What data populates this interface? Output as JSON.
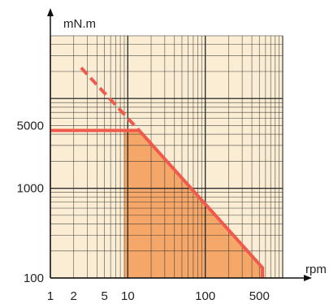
{
  "chart_data": {
    "type": "line",
    "xlabel": "rpm",
    "ylabel": "mN.m",
    "x_scale": "log",
    "y_scale": "log",
    "xlim": [
      1,
      1000
    ],
    "ylim": [
      100,
      50000
    ],
    "x_ticks": [
      {
        "value": 1,
        "label": "1"
      },
      {
        "value": 2,
        "label": "2"
      },
      {
        "value": 5,
        "label": "5"
      },
      {
        "value": 10,
        "label": "10"
      },
      {
        "value": 100,
        "label": "100"
      },
      {
        "value": 500,
        "label": "500"
      }
    ],
    "y_ticks": [
      {
        "value": 100,
        "label": "100"
      },
      {
        "value": 1000,
        "label": "1000"
      },
      {
        "value": 5000,
        "label": "5000"
      }
    ],
    "grid": true,
    "series": [
      {
        "style": "solid",
        "color": "#ef5a4c",
        "points": [
          [
            1,
            4400
          ],
          [
            14,
            4400
          ],
          [
            550,
            130
          ],
          [
            550,
            100
          ]
        ]
      },
      {
        "style": "dashed",
        "color": "#ef5a4c",
        "points": [
          [
            2.5,
            22000
          ],
          [
            14,
            4400
          ]
        ]
      }
    ],
    "shaded_region": {
      "color": "#f3a15f",
      "points": [
        [
          9,
          100
        ],
        [
          9,
          4400
        ],
        [
          14,
          4400
        ],
        [
          550,
          130
        ],
        [
          550,
          100
        ]
      ]
    },
    "colors": {
      "background": "#fbedd4",
      "grid": "#2b2b2b",
      "axis": "#111111"
    }
  }
}
